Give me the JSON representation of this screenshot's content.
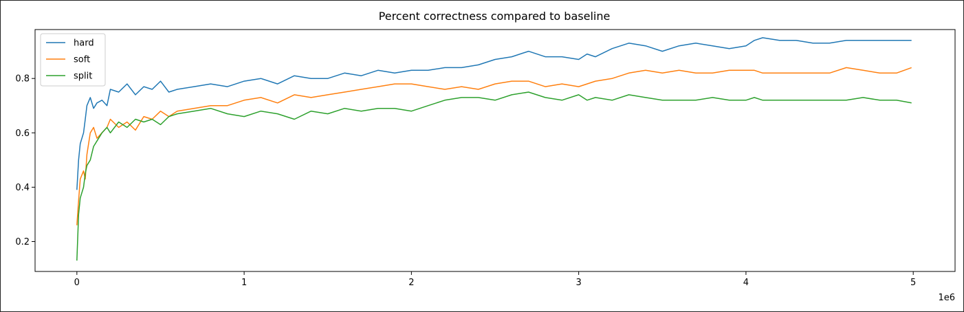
{
  "chart_data": {
    "type": "line",
    "title": "Percent correctness compared to baseline",
    "xlabel": "",
    "ylabel": "",
    "x_offset_label": "1e6",
    "xlim": [
      -0.25,
      5.25
    ],
    "ylim": [
      0.09,
      0.98
    ],
    "x_ticks": [
      0,
      1,
      2,
      3,
      4,
      5
    ],
    "x_tick_labels": [
      "0",
      "1",
      "2",
      "3",
      "4",
      "5"
    ],
    "y_ticks": [
      0.2,
      0.4,
      0.6,
      0.8
    ],
    "y_tick_labels": [
      "0.2",
      "0.4",
      "0.6",
      "0.8"
    ],
    "grid": false,
    "legend_position": "upper-left",
    "series": [
      {
        "name": "hard",
        "color": "#1f77b4",
        "x": [
          0,
          0.01,
          0.02,
          0.04,
          0.05,
          0.06,
          0.08,
          0.1,
          0.12,
          0.15,
          0.18,
          0.2,
          0.25,
          0.3,
          0.35,
          0.4,
          0.45,
          0.5,
          0.55,
          0.6,
          0.7,
          0.8,
          0.9,
          1.0,
          1.1,
          1.2,
          1.3,
          1.4,
          1.5,
          1.6,
          1.7,
          1.8,
          1.9,
          2.0,
          2.1,
          2.2,
          2.3,
          2.4,
          2.5,
          2.6,
          2.7,
          2.8,
          2.9,
          3.0,
          3.05,
          3.1,
          3.2,
          3.3,
          3.4,
          3.5,
          3.6,
          3.7,
          3.8,
          3.9,
          4.0,
          4.05,
          4.1,
          4.2,
          4.3,
          4.4,
          4.5,
          4.6,
          4.7,
          4.8,
          4.9,
          4.99
        ],
        "values": [
          0.39,
          0.5,
          0.56,
          0.6,
          0.65,
          0.7,
          0.73,
          0.69,
          0.71,
          0.72,
          0.7,
          0.76,
          0.75,
          0.78,
          0.74,
          0.77,
          0.76,
          0.79,
          0.75,
          0.76,
          0.77,
          0.78,
          0.77,
          0.79,
          0.8,
          0.78,
          0.81,
          0.8,
          0.8,
          0.82,
          0.81,
          0.83,
          0.82,
          0.83,
          0.83,
          0.84,
          0.84,
          0.85,
          0.87,
          0.88,
          0.9,
          0.88,
          0.88,
          0.87,
          0.89,
          0.88,
          0.91,
          0.93,
          0.92,
          0.9,
          0.92,
          0.93,
          0.92,
          0.91,
          0.92,
          0.94,
          0.95,
          0.94,
          0.94,
          0.93,
          0.93,
          0.94,
          0.94,
          0.94,
          0.94,
          0.94
        ]
      },
      {
        "name": "soft",
        "color": "#ff7f0e",
        "x": [
          0,
          0.01,
          0.02,
          0.04,
          0.05,
          0.06,
          0.08,
          0.1,
          0.12,
          0.15,
          0.18,
          0.2,
          0.25,
          0.3,
          0.35,
          0.4,
          0.45,
          0.5,
          0.55,
          0.6,
          0.7,
          0.8,
          0.9,
          1.0,
          1.1,
          1.2,
          1.3,
          1.4,
          1.5,
          1.6,
          1.7,
          1.8,
          1.9,
          2.0,
          2.1,
          2.2,
          2.3,
          2.4,
          2.5,
          2.6,
          2.7,
          2.8,
          2.9,
          3.0,
          3.05,
          3.1,
          3.2,
          3.3,
          3.4,
          3.5,
          3.6,
          3.7,
          3.8,
          3.9,
          4.0,
          4.05,
          4.1,
          4.2,
          4.3,
          4.4,
          4.5,
          4.6,
          4.7,
          4.8,
          4.9,
          4.99
        ],
        "values": [
          0.26,
          0.35,
          0.43,
          0.46,
          0.43,
          0.52,
          0.6,
          0.62,
          0.58,
          0.6,
          0.62,
          0.65,
          0.62,
          0.64,
          0.61,
          0.66,
          0.65,
          0.68,
          0.66,
          0.68,
          0.69,
          0.7,
          0.7,
          0.72,
          0.73,
          0.71,
          0.74,
          0.73,
          0.74,
          0.75,
          0.76,
          0.77,
          0.78,
          0.78,
          0.77,
          0.76,
          0.77,
          0.76,
          0.78,
          0.79,
          0.79,
          0.77,
          0.78,
          0.77,
          0.78,
          0.79,
          0.8,
          0.82,
          0.83,
          0.82,
          0.83,
          0.82,
          0.82,
          0.83,
          0.83,
          0.83,
          0.82,
          0.82,
          0.82,
          0.82,
          0.82,
          0.84,
          0.83,
          0.82,
          0.82,
          0.84
        ]
      },
      {
        "name": "split",
        "color": "#2ca02c",
        "x": [
          0,
          0.01,
          0.02,
          0.04,
          0.05,
          0.06,
          0.08,
          0.1,
          0.12,
          0.15,
          0.18,
          0.2,
          0.25,
          0.3,
          0.35,
          0.4,
          0.45,
          0.5,
          0.55,
          0.6,
          0.7,
          0.8,
          0.9,
          1.0,
          1.1,
          1.2,
          1.3,
          1.4,
          1.5,
          1.6,
          1.7,
          1.8,
          1.9,
          2.0,
          2.1,
          2.2,
          2.3,
          2.4,
          2.5,
          2.6,
          2.7,
          2.8,
          2.9,
          3.0,
          3.05,
          3.1,
          3.2,
          3.3,
          3.4,
          3.5,
          3.6,
          3.7,
          3.8,
          3.9,
          4.0,
          4.05,
          4.1,
          4.2,
          4.3,
          4.4,
          4.5,
          4.6,
          4.7,
          4.8,
          4.9,
          4.99
        ],
        "values": [
          0.13,
          0.3,
          0.36,
          0.4,
          0.45,
          0.48,
          0.5,
          0.55,
          0.57,
          0.6,
          0.62,
          0.6,
          0.64,
          0.62,
          0.65,
          0.64,
          0.65,
          0.63,
          0.66,
          0.67,
          0.68,
          0.69,
          0.67,
          0.66,
          0.68,
          0.67,
          0.65,
          0.68,
          0.67,
          0.69,
          0.68,
          0.69,
          0.69,
          0.68,
          0.7,
          0.72,
          0.73,
          0.73,
          0.72,
          0.74,
          0.75,
          0.73,
          0.72,
          0.74,
          0.72,
          0.73,
          0.72,
          0.74,
          0.73,
          0.72,
          0.72,
          0.72,
          0.73,
          0.72,
          0.72,
          0.73,
          0.72,
          0.72,
          0.72,
          0.72,
          0.72,
          0.72,
          0.73,
          0.72,
          0.72,
          0.71
        ]
      }
    ]
  }
}
